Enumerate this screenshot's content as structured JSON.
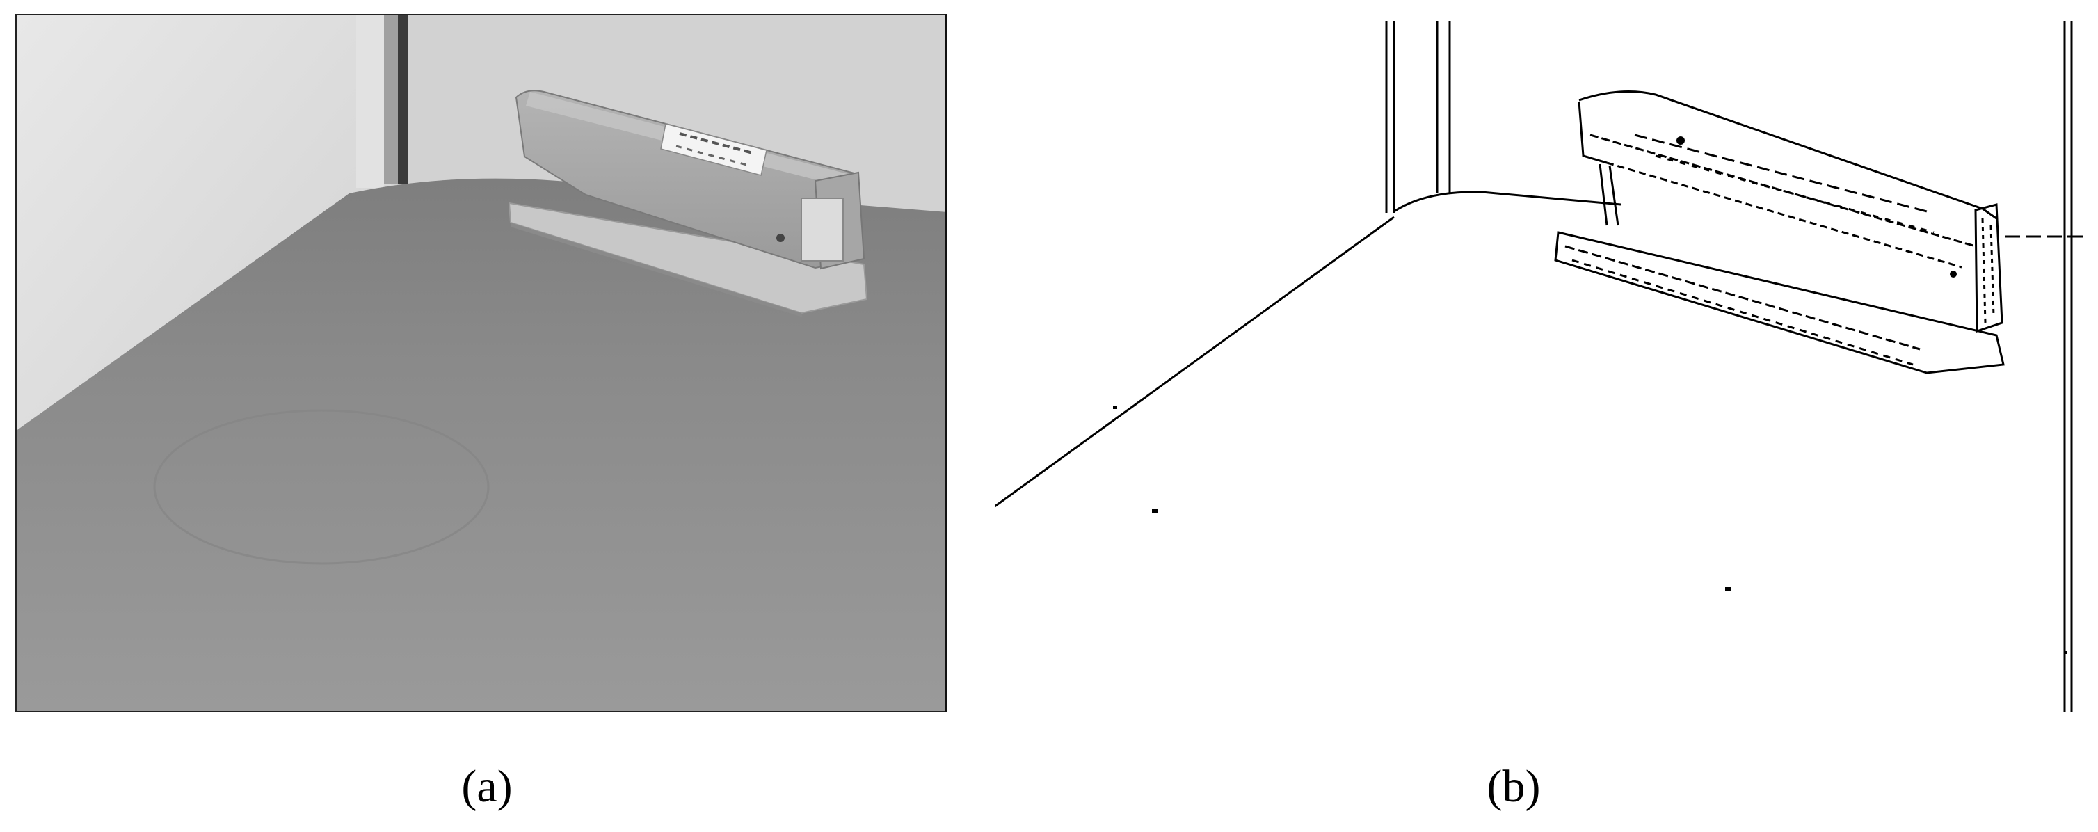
{
  "figure": {
    "panels": [
      {
        "id": "a",
        "label": "(a)",
        "content": "grayscale-photo",
        "icon": "stapler-photo"
      },
      {
        "id": "b",
        "label": "(b)",
        "content": "edge-map",
        "icon": "stapler-edge-map"
      }
    ]
  },
  "colors": {
    "background": "#ffffff",
    "wall": "#d9d9d9",
    "table": "#8e8e8e",
    "edge_lines": "#000000"
  }
}
